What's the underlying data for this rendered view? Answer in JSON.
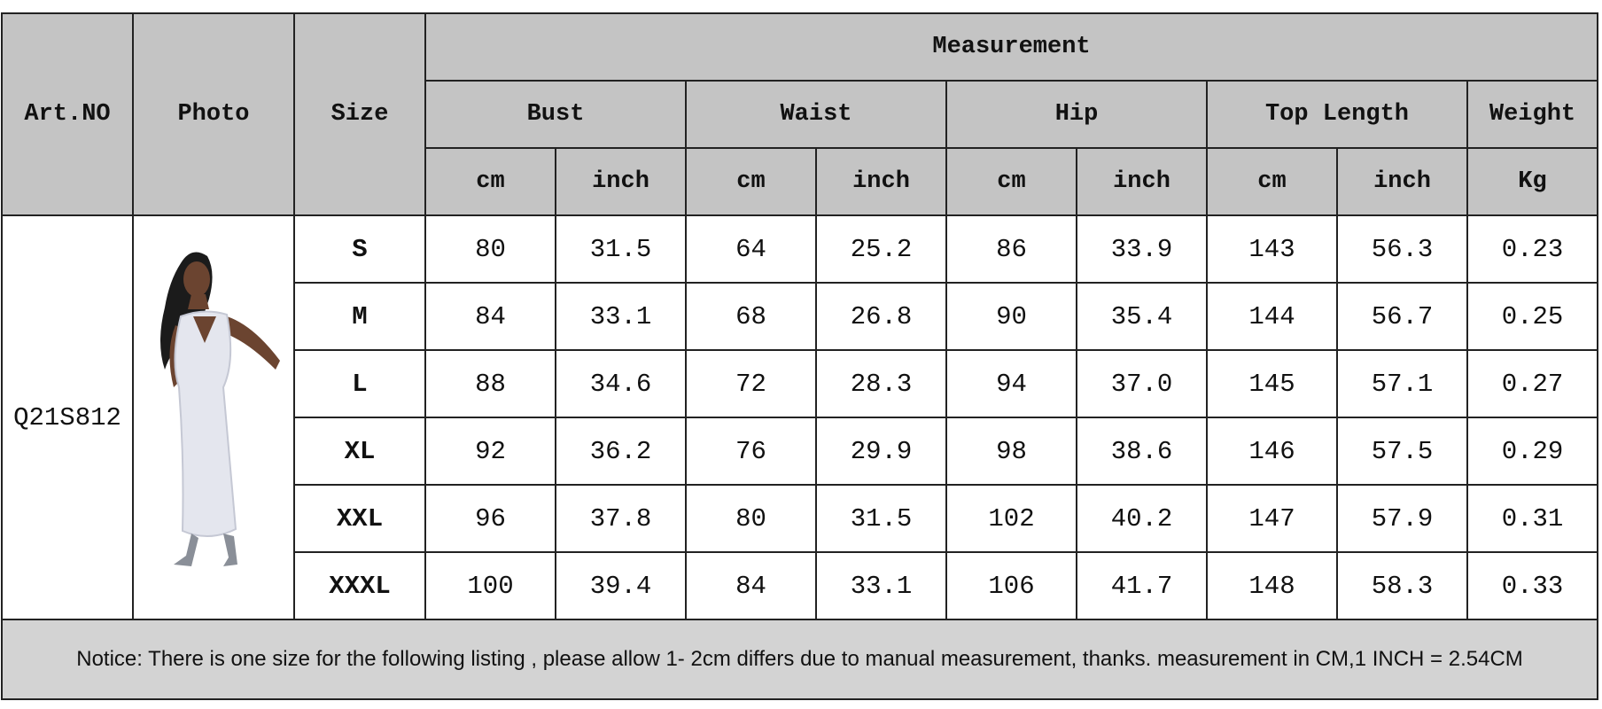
{
  "table": {
    "header": {
      "art_no": "Art.NO",
      "photo": "Photo",
      "size": "Size",
      "measurement": "Measurement",
      "groups": [
        "Bust",
        "Waist",
        "Hip",
        "Top Length",
        "Weight"
      ],
      "units": [
        "cm",
        "inch",
        "cm",
        "inch",
        "cm",
        "inch",
        "cm",
        "inch",
        "Kg"
      ]
    },
    "art_no": "Q21S812",
    "rows": [
      [
        "S",
        "80",
        "31.5",
        "64",
        "25.2",
        "86",
        "33.9",
        "143",
        "56.3",
        "0.23"
      ],
      [
        "M",
        "84",
        "33.1",
        "68",
        "26.8",
        "90",
        "35.4",
        "144",
        "56.7",
        "0.25"
      ],
      [
        "L",
        "88",
        "34.6",
        "72",
        "28.3",
        "94",
        "37.0",
        "145",
        "57.1",
        "0.27"
      ],
      [
        "XL",
        "92",
        "36.2",
        "76",
        "29.9",
        "98",
        "38.6",
        "146",
        "57.5",
        "0.29"
      ],
      [
        "XXL",
        "96",
        "37.8",
        "80",
        "31.5",
        "102",
        "40.2",
        "147",
        "57.9",
        "0.31"
      ],
      [
        "XXXL",
        "100",
        "39.4",
        "84",
        "33.1",
        "106",
        "41.7",
        "148",
        "58.3",
        "0.33"
      ]
    ],
    "notice": "Notice: There is one size for the following listing , please allow 1- 2cm differs due to manual measurement, thanks.  measurement in CM,1 INCH = 2.54CM"
  }
}
